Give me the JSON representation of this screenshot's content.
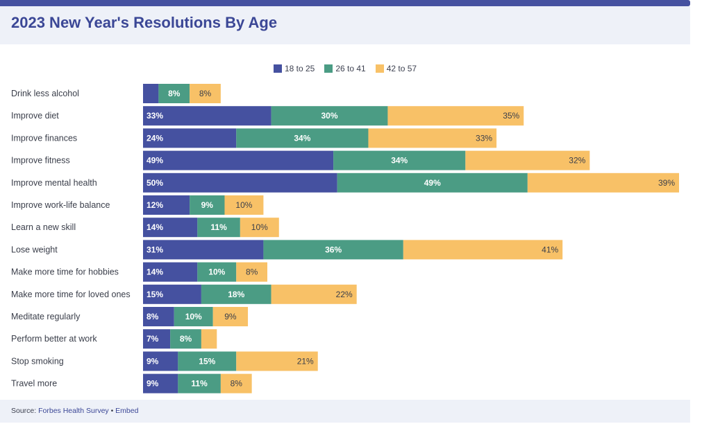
{
  "title": "2023 New Year's Resolutions By Age",
  "colors": {
    "s1": "#4551a0",
    "s2": "#4b9c84",
    "s3": "#f8c167"
  },
  "source": {
    "prefix": "Source: ",
    "link": "Forbes Health Survey",
    "sep": " • ",
    "embed": "Embed"
  },
  "chart_data": {
    "type": "bar",
    "orientation": "horizontal",
    "stacked": true,
    "legend_position": "top-center",
    "categories": [
      "Drink less alcohol",
      "Improve diet",
      "Improve finances",
      "Improve fitness",
      "Improve mental health",
      "Improve work-life balance",
      "Learn a new skill",
      "Lose weight",
      "Make more time for hobbies",
      "Make more time for loved ones",
      "Meditate regularly",
      "Perform better at work",
      "Stop smoking",
      "Travel more"
    ],
    "series": [
      {
        "name": "18 to 25",
        "values": [
          4,
          33,
          24,
          49,
          50,
          12,
          14,
          31,
          14,
          15,
          8,
          7,
          9,
          9
        ]
      },
      {
        "name": "26 to 41",
        "values": [
          8,
          30,
          34,
          34,
          49,
          9,
          11,
          36,
          10,
          18,
          10,
          8,
          15,
          11
        ]
      },
      {
        "name": "42 to 57",
        "values": [
          8,
          35,
          33,
          32,
          39,
          10,
          10,
          41,
          8,
          22,
          9,
          4,
          21,
          8
        ]
      }
    ],
    "labels": [
      [
        "",
        "8%",
        "8%"
      ],
      [
        "33%",
        "30%",
        "35%"
      ],
      [
        "24%",
        "34%",
        "33%"
      ],
      [
        "49%",
        "34%",
        "32%"
      ],
      [
        "50%",
        "49%",
        "39%"
      ],
      [
        "12%",
        "9%",
        "10%"
      ],
      [
        "14%",
        "11%",
        "10%"
      ],
      [
        "31%",
        "36%",
        "41%"
      ],
      [
        "14%",
        "10%",
        "8%"
      ],
      [
        "15%",
        "18%",
        "22%"
      ],
      [
        "8%",
        "10%",
        "9%"
      ],
      [
        "7%",
        "8%",
        ""
      ],
      [
        "9%",
        "15%",
        "21%"
      ],
      [
        "9%",
        "11%",
        "8%"
      ]
    ],
    "xlim": [
      0,
      138
    ],
    "grid": false
  }
}
